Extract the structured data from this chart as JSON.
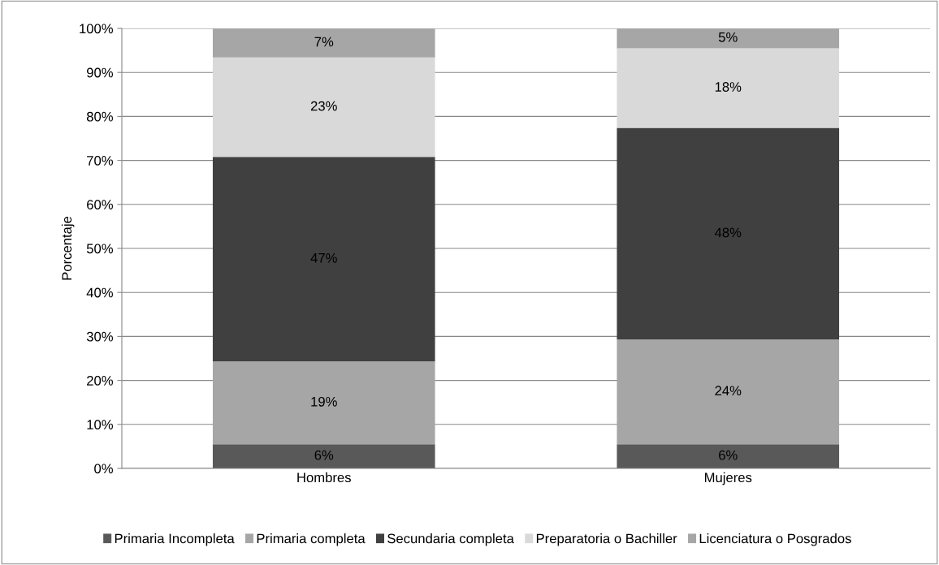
{
  "chart_data": {
    "type": "bar",
    "stacked": true,
    "ylabel": "Porcentaje",
    "categories": [
      "Hombres",
      "Mujeres"
    ],
    "series": [
      {
        "name": "Primaria Incompleta",
        "color": "#595959",
        "values": [
          5.5,
          5.5
        ],
        "value_labels": [
          "6%",
          "6%"
        ]
      },
      {
        "name": "Primaria completa",
        "color": "#a6a6a6",
        "values": [
          18.8,
          23.8
        ],
        "value_labels": [
          "19%",
          "24%"
        ]
      },
      {
        "name": "Secundaria completa",
        "color": "#404040",
        "values": [
          46.5,
          48.1
        ],
        "value_labels": [
          "47%",
          "48%"
        ]
      },
      {
        "name": "Preparatoria o Bachiller",
        "color": "#d9d9d9",
        "values": [
          22.6,
          18.1
        ],
        "value_labels": [
          "23%",
          "18%"
        ]
      },
      {
        "name": "Licenciatura o Posgrados",
        "color": "#a6a6a6",
        "values": [
          6.6,
          4.5
        ],
        "value_labels": [
          "7%",
          "5%"
        ]
      }
    ],
    "ylim": [
      0,
      100
    ],
    "yticks": [
      {
        "value": 0,
        "label": "0%"
      },
      {
        "value": 10,
        "label": "10%"
      },
      {
        "value": 20,
        "label": "20%"
      },
      {
        "value": 30,
        "label": "30%"
      },
      {
        "value": 40,
        "label": "40%"
      },
      {
        "value": 50,
        "label": "50%"
      },
      {
        "value": 60,
        "label": "60%"
      },
      {
        "value": 70,
        "label": "70%"
      },
      {
        "value": 80,
        "label": "80%"
      },
      {
        "value": 90,
        "label": "90%"
      },
      {
        "value": 100,
        "label": "100%"
      }
    ],
    "grid": "y",
    "legend": "bottom"
  }
}
